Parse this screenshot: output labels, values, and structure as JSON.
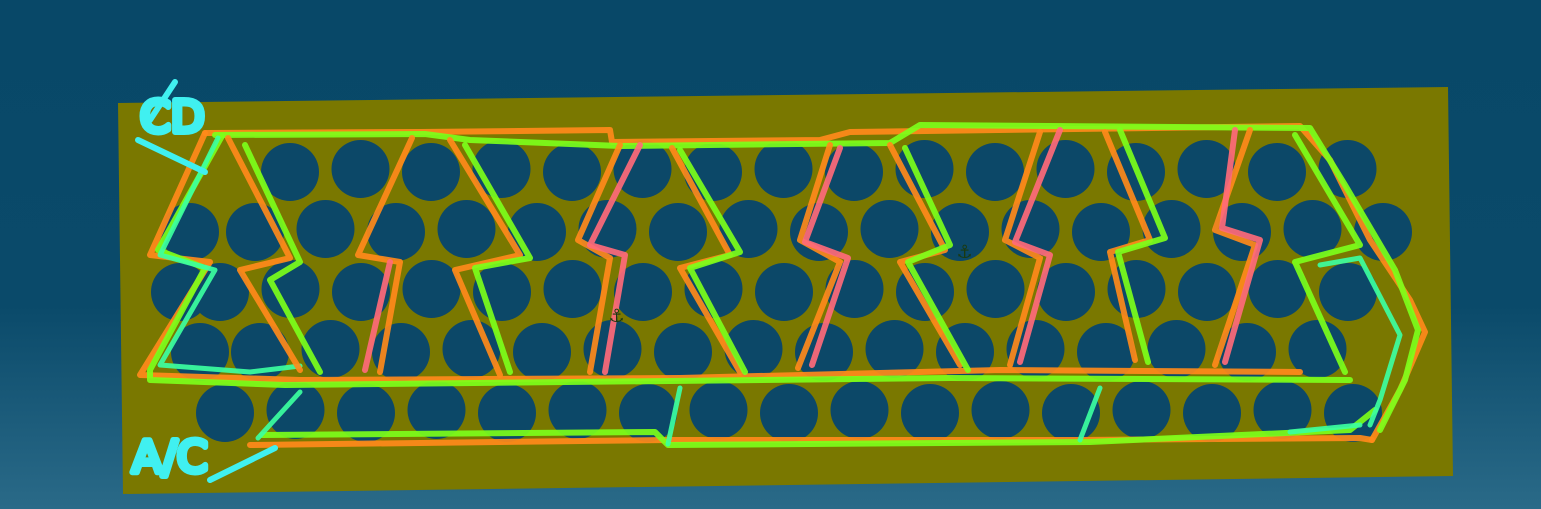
{
  "annotations": {
    "top_left_label": "CD",
    "bottom_left_label": "A/C"
  },
  "markers": [
    {
      "name": "anchor-marker-1",
      "glyph": "⚓"
    },
    {
      "name": "anchor-marker-2",
      "glyph": "⚓"
    }
  ],
  "colors": {
    "background_top": "#084868",
    "background_bottom": "#2a6a88",
    "plate": "#7a7800",
    "hole": "#0c4868",
    "stroke_orange": "#ff8a1a",
    "stroke_green": "#7cff1a",
    "stroke_teal": "#3cffa0",
    "stroke_pink": "#ff6a7a",
    "annotation": "#40f0f0"
  }
}
